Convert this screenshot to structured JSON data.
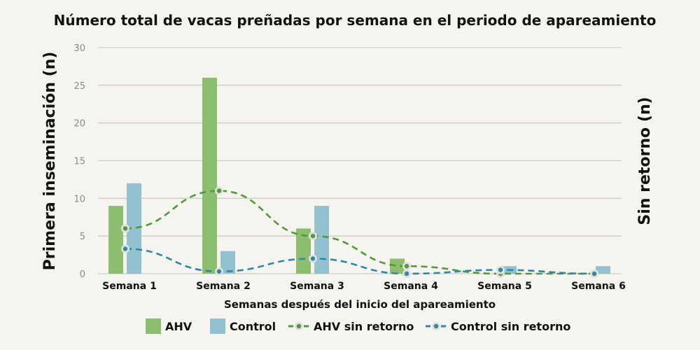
{
  "chart_data": {
    "type": "bar",
    "title": "Número total de vacas preñadas por semana en el periodo de apareamiento",
    "xlabel": "Semanas después del inicio del apareamiento",
    "ylabel": "Primera inseminación (n)",
    "ylabel_right": "Sin retorno (n)",
    "ylim": [
      0,
      30
    ],
    "yticks": [
      0,
      5,
      10,
      15,
      20,
      25,
      30
    ],
    "grid": true,
    "legend_position": "bottom",
    "categories": [
      "Semana 1",
      "Semana  2",
      "Semana  3",
      "Semana 4",
      "Semana  5",
      "Semana  6"
    ],
    "series": [
      {
        "name": "AHV",
        "type": "bar",
        "color": "#8dbd6e",
        "values": [
          9,
          26,
          6,
          2,
          0,
          0
        ]
      },
      {
        "name": "Control",
        "type": "bar",
        "color": "#93c1cf",
        "values": [
          12,
          3,
          9,
          0,
          1,
          1
        ]
      },
      {
        "name": "AHV sin retorno",
        "type": "line",
        "style": "dashed",
        "color": "#4f9a3a",
        "values": [
          6,
          11,
          5,
          1,
          0,
          0
        ]
      },
      {
        "name": "Control sin retorno",
        "type": "line",
        "style": "dashed",
        "color": "#2f88a6",
        "values": [
          3.3,
          0.3,
          2,
          0,
          0.5,
          0
        ]
      }
    ]
  }
}
